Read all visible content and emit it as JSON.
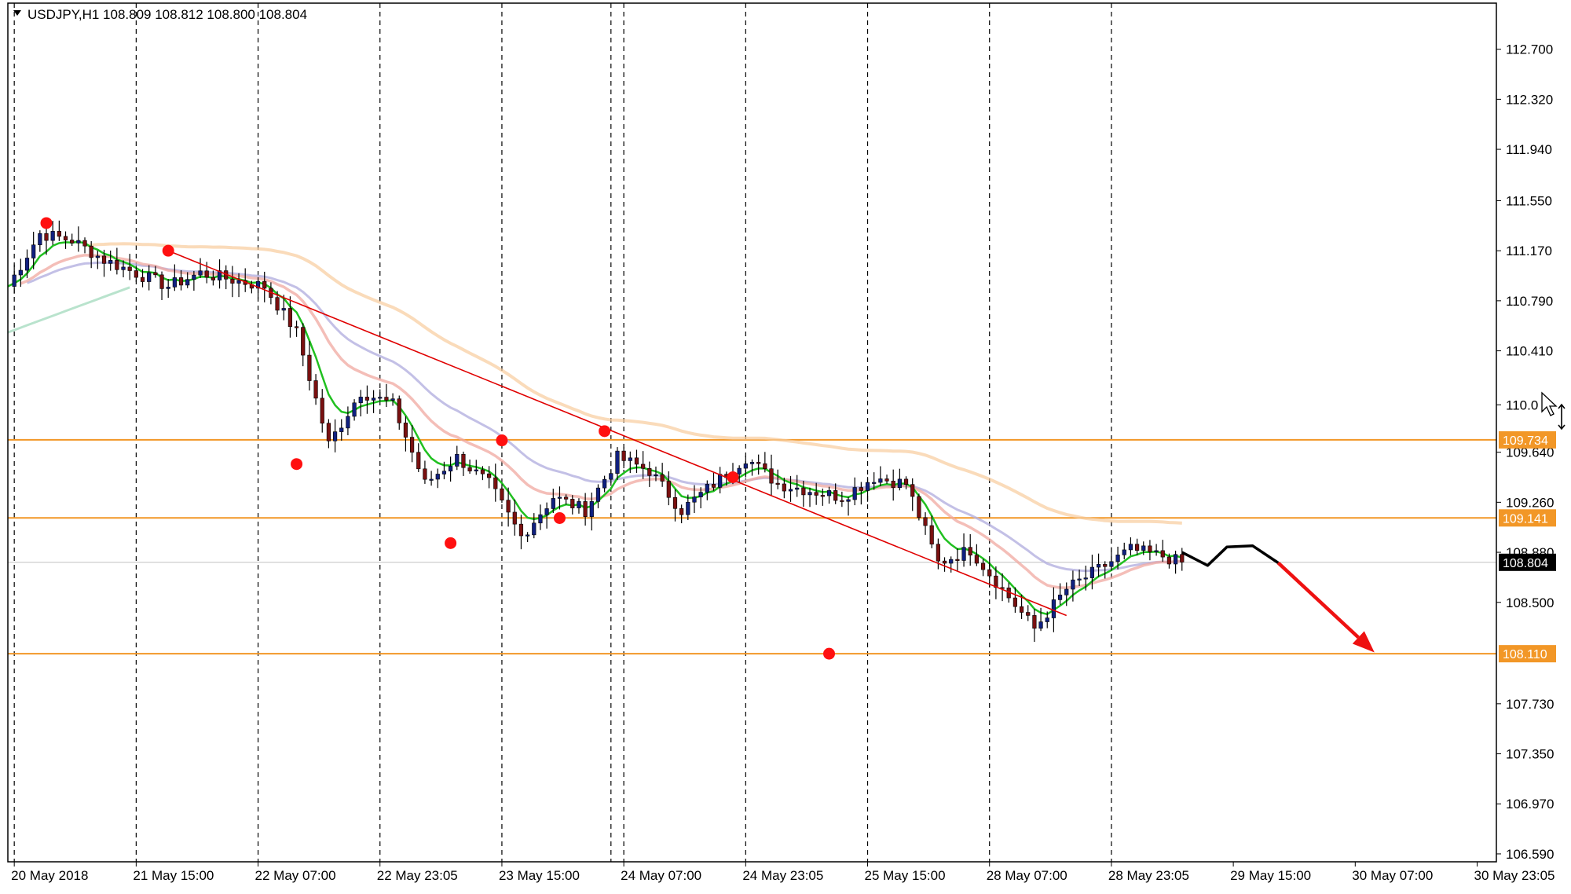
{
  "chart_data": {
    "type": "candlestick",
    "symbol_line": "USDJPY,H1  108.809 108.812 108.800 108.804",
    "timeframe": "H1",
    "ohlc": {
      "open": 108.809,
      "high": 108.812,
      "low": 108.8,
      "close": 108.804
    },
    "ylim": [
      106.53,
      113.05
    ],
    "y_ticks": [
      "112.700",
      "112.320",
      "111.940",
      "111.550",
      "111.170",
      "110.790",
      "110.410",
      "110.0",
      "109.640",
      "109.260",
      "108.880",
      "108.500",
      "107.730",
      "107.350",
      "106.970",
      "106.590"
    ],
    "x_ticks": [
      "20 May 2018",
      "21 May 15:00",
      "22 May 07:00",
      "22 May 23:05",
      "23 May 15:00",
      "24 May 07:00",
      "24 May 23:05",
      "25 May 15:00",
      "28 May 07:00",
      "28 May 23:05",
      "29 May 15:00",
      "30 May 07:00",
      "30 May 23:05"
    ],
    "levels": [
      {
        "label": "109.734",
        "value": 109.734,
        "color": "#f29727"
      },
      {
        "label": "109.141",
        "value": 109.141,
        "color": "#f29727"
      },
      {
        "label": "108.110",
        "value": 108.11,
        "color": "#f29727"
      }
    ],
    "current_price": {
      "label": "108.804",
      "value": 108.804
    },
    "close_path": [
      {
        "x": 0,
        "y": 110.9
      },
      {
        "x": 5,
        "y": 111.3
      },
      {
        "x": 10,
        "y": 111.25
      },
      {
        "x": 15,
        "y": 111.1
      },
      {
        "x": 20,
        "y": 111.0
      },
      {
        "x": 25,
        "y": 110.9
      },
      {
        "x": 30,
        "y": 111.0
      },
      {
        "x": 35,
        "y": 110.95
      },
      {
        "x": 40,
        "y": 110.9
      },
      {
        "x": 45,
        "y": 110.55
      },
      {
        "x": 50,
        "y": 109.7
      },
      {
        "x": 55,
        "y": 110.1
      },
      {
        "x": 60,
        "y": 110.0
      },
      {
        "x": 65,
        "y": 109.4
      },
      {
        "x": 70,
        "y": 109.6
      },
      {
        "x": 75,
        "y": 109.4
      },
      {
        "x": 80,
        "y": 109.0
      },
      {
        "x": 85,
        "y": 109.3
      },
      {
        "x": 90,
        "y": 109.2
      },
      {
        "x": 95,
        "y": 109.6
      },
      {
        "x": 100,
        "y": 109.5
      },
      {
        "x": 105,
        "y": 109.2
      },
      {
        "x": 110,
        "y": 109.4
      },
      {
        "x": 115,
        "y": 109.6
      },
      {
        "x": 120,
        "y": 109.4
      },
      {
        "x": 125,
        "y": 109.35
      },
      {
        "x": 130,
        "y": 109.3
      },
      {
        "x": 135,
        "y": 109.45
      },
      {
        "x": 140,
        "y": 109.4
      },
      {
        "x": 145,
        "y": 108.8
      },
      {
        "x": 150,
        "y": 108.9
      },
      {
        "x": 155,
        "y": 108.6
      },
      {
        "x": 160,
        "y": 108.3
      },
      {
        "x": 165,
        "y": 108.6
      },
      {
        "x": 170,
        "y": 108.75
      },
      {
        "x": 175,
        "y": 108.9
      },
      {
        "x": 180,
        "y": 108.85
      },
      {
        "x": 183,
        "y": 108.8
      }
    ],
    "ma_fast_color": "#20c020",
    "ma_slow_color": "#f0a8a0",
    "ma_long_color": "#f8cc9c",
    "ma_lavender_color": "#b4b0e0",
    "ma_mint_color": "#a8dcc0",
    "bull_color": "#102080",
    "bear_color": "#7a1010",
    "trendline_color": "#e00000",
    "swing_points": [
      {
        "x": 6,
        "y": 111.38
      },
      {
        "x": 25,
        "y": 111.17
      },
      {
        "x": 45,
        "y": 109.55
      },
      {
        "x": 69,
        "y": 108.95
      },
      {
        "x": 77,
        "y": 109.73
      },
      {
        "x": 86,
        "y": 109.14
      },
      {
        "x": 93,
        "y": 109.8
      },
      {
        "x": 113,
        "y": 109.45
      },
      {
        "x": 128,
        "y": 108.11
      }
    ],
    "trendline": {
      "start": {
        "x": 25,
        "y": 111.17
      },
      "end": {
        "x": 165,
        "y": 108.4
      }
    },
    "forecast_path": [
      {
        "x": 183,
        "y": 108.88
      },
      {
        "x": 187,
        "y": 108.78
      },
      {
        "x": 190,
        "y": 108.92
      },
      {
        "x": 194,
        "y": 108.93
      },
      {
        "x": 198,
        "y": 108.8
      }
    ],
    "forecast_arrow": {
      "start": {
        "x": 198,
        "y": 108.8
      },
      "end": {
        "x": 213,
        "y": 108.12
      }
    }
  }
}
